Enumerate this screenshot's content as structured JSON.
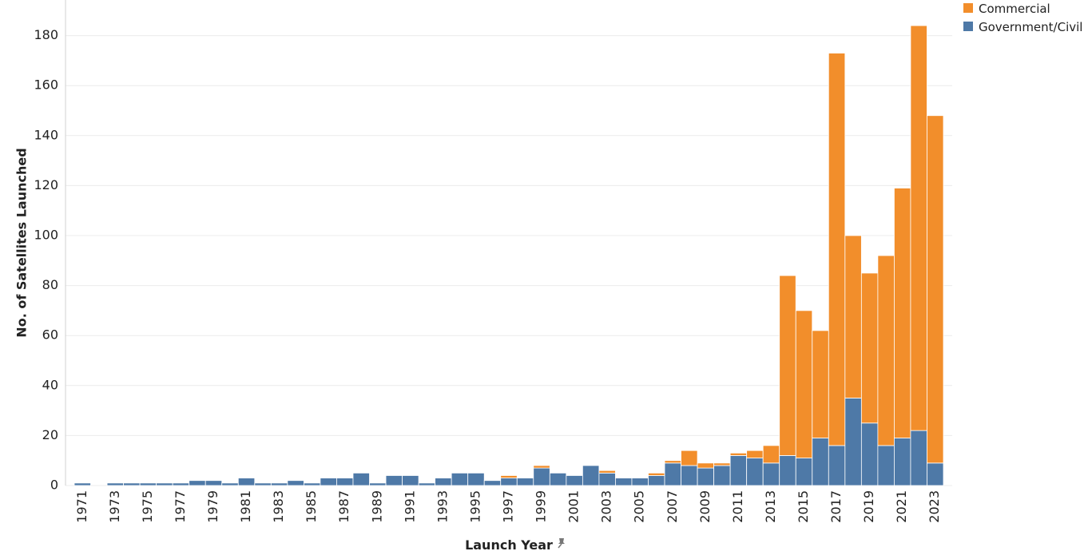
{
  "chart_data": {
    "type": "bar",
    "stacked": true,
    "xlabel": "Launch Year",
    "ylabel": "No. of Satellites Launched",
    "ylim": [
      0,
      185
    ],
    "yticks": [
      0,
      20,
      40,
      60,
      80,
      100,
      120,
      140,
      160,
      180
    ],
    "grid": true,
    "legend_position": "top-right",
    "x_tick_labels": [
      "1971",
      "1973",
      "1975",
      "1977",
      "1979",
      "1981",
      "1983",
      "1985",
      "1987",
      "1989",
      "1991",
      "1993",
      "1995",
      "1997",
      "1999",
      "2001",
      "2003",
      "2005",
      "2007",
      "2009",
      "2011",
      "2013",
      "2015",
      "2017",
      "2019",
      "2021",
      "2023"
    ],
    "categories": [
      "1971",
      "1972",
      "1973",
      "1974",
      "1975",
      "1976",
      "1977",
      "1978",
      "1979",
      "1980",
      "1981",
      "1982",
      "1983",
      "1984",
      "1985",
      "1986",
      "1987",
      "1988",
      "1989",
      "1990",
      "1991",
      "1992",
      "1993",
      "1994",
      "1995",
      "1996",
      "1997",
      "1998",
      "1999",
      "2000",
      "2001",
      "2002",
      "2003",
      "2004",
      "2005",
      "2006",
      "2007",
      "2008",
      "2009",
      "2010",
      "2011",
      "2012",
      "2013",
      "2014",
      "2015",
      "2016",
      "2017",
      "2018",
      "2019",
      "2020",
      "2021",
      "2022",
      "2023"
    ],
    "series": [
      {
        "name": "Government/Civil",
        "color": "#4e79a7",
        "values": [
          1,
          0,
          1,
          1,
          1,
          1,
          1,
          2,
          2,
          1,
          3,
          1,
          1,
          2,
          1,
          3,
          3,
          5,
          1,
          4,
          4,
          1,
          3,
          5,
          5,
          2,
          3,
          3,
          7,
          5,
          4,
          8,
          5,
          3,
          3,
          4,
          9,
          8,
          7,
          8,
          12,
          11,
          9,
          12,
          11,
          19,
          16,
          35,
          25,
          16,
          19,
          22,
          9
        ]
      },
      {
        "name": "Commercial",
        "color": "#f28e2b",
        "values": [
          0,
          0,
          0,
          0,
          0,
          0,
          0,
          0,
          0,
          0,
          0,
          0,
          0,
          0,
          0,
          0,
          0,
          0,
          0,
          0,
          0,
          0,
          0,
          0,
          0,
          0,
          1,
          0,
          1,
          0,
          0,
          0,
          1,
          0,
          0,
          1,
          1,
          6,
          2,
          1,
          1,
          3,
          7,
          72,
          59,
          43,
          157,
          65,
          60,
          76,
          100,
          162,
          139
        ]
      }
    ]
  },
  "legend": {
    "items": [
      {
        "label": "Commercial",
        "color": "#f28e2b"
      },
      {
        "label": "Government/Civil",
        "color": "#4e79a7"
      }
    ]
  }
}
